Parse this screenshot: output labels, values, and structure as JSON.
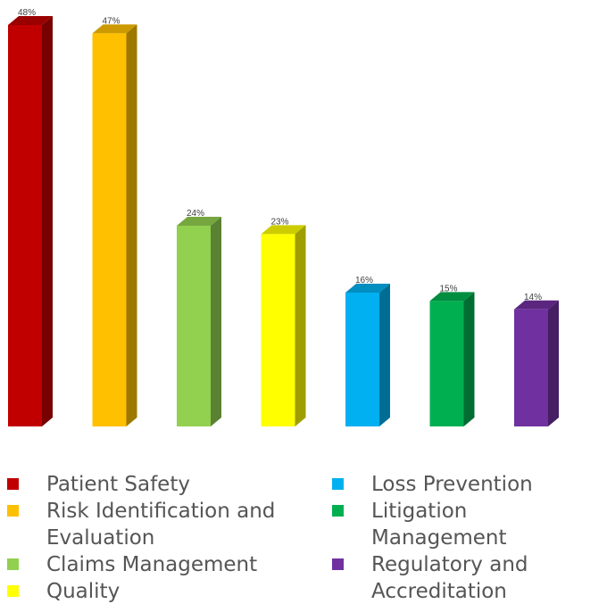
{
  "chart_data": {
    "type": "bar",
    "categories": [
      "Patient Safety",
      "Risk Identification and Evaluation",
      "Claims Management",
      "Quality",
      "Loss Prevention",
      "Litigation Management",
      "Regulatory and Accreditation"
    ],
    "values": [
      48,
      47,
      24,
      23,
      16,
      15,
      14
    ],
    "value_labels": [
      "48%",
      "47%",
      "24%",
      "23%",
      "16%",
      "15%",
      "14%"
    ],
    "colors": [
      "#C00000",
      "#FFC000",
      "#92D050",
      "#FFFF00",
      "#00B0F0",
      "#00B050",
      "#7030A0"
    ],
    "ylim": [
      0,
      50
    ],
    "grid": false,
    "legend_position": "bottom",
    "style": "3d-column"
  },
  "legend": {
    "left": [
      {
        "label": "Patient Safety",
        "color": "#C00000"
      },
      {
        "label": "Risk Identification and",
        "label2": "Evaluation",
        "color": "#FFC000"
      },
      {
        "label": "Claims Management",
        "color": "#92D050"
      },
      {
        "label": "Quality",
        "color": "#FFFF00"
      }
    ],
    "right": [
      {
        "label": "Loss Prevention",
        "color": "#00B0F0"
      },
      {
        "label": "Litigation Management",
        "color": "#00B050"
      },
      {
        "label": "Regulatory and",
        "label2": "Accreditation",
        "color": "#7030A0"
      }
    ]
  }
}
